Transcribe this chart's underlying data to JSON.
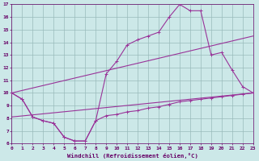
{
  "xlabel": "Windchill (Refroidissement éolien,°C)",
  "bg_color": "#cce8e8",
  "line_color": "#993399",
  "grid_color": "#99bbbb",
  "xmin": 0,
  "xmax": 23,
  "ymin": 6,
  "ymax": 17,
  "line1_x": [
    0,
    1,
    2,
    3,
    4,
    5,
    6,
    7,
    8,
    9,
    10,
    11,
    12,
    13,
    14,
    15,
    16,
    17,
    18,
    19,
    20,
    21,
    22,
    23
  ],
  "line1_y": [
    10.0,
    9.5,
    8.1,
    7.8,
    7.6,
    6.5,
    6.2,
    6.2,
    7.8,
    11.5,
    12.5,
    13.8,
    14.2,
    14.5,
    14.8,
    16.0,
    17.0,
    16.5,
    16.5,
    13.0,
    13.2,
    11.8,
    10.5,
    10.0
  ],
  "line2_x": [
    0,
    1,
    2,
    3,
    4,
    5,
    6,
    7,
    8,
    9,
    10,
    11,
    12,
    13,
    14,
    15,
    16,
    17,
    18,
    19,
    20,
    21,
    22,
    23
  ],
  "line2_y": [
    10.0,
    9.5,
    8.1,
    7.8,
    7.6,
    6.5,
    6.2,
    6.2,
    7.8,
    8.2,
    8.3,
    8.5,
    8.6,
    8.8,
    8.9,
    9.1,
    9.3,
    9.4,
    9.5,
    9.6,
    9.7,
    9.8,
    9.9,
    10.0
  ],
  "line3_x": [
    0,
    23
  ],
  "line3_y": [
    10.0,
    14.5
  ],
  "line4_x": [
    0,
    23
  ],
  "line4_y": [
    8.1,
    10.0
  ]
}
